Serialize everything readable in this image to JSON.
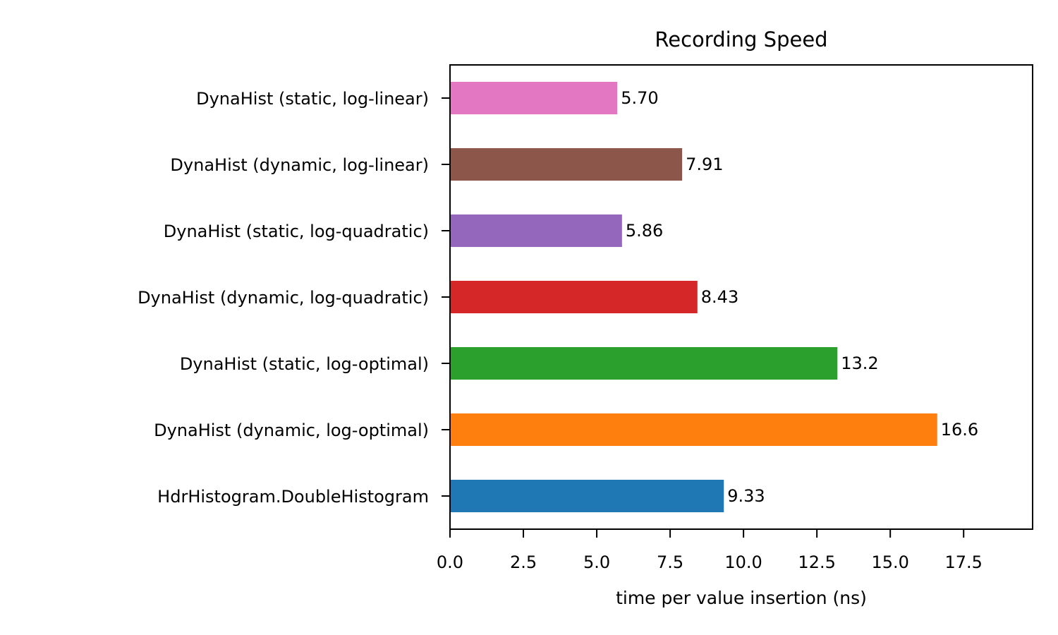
{
  "chart_data": {
    "type": "bar",
    "orientation": "horizontal",
    "title": "Recording Speed",
    "xlabel": "time per value insertion (ns)",
    "ylabel": "",
    "xlim": [
      0,
      19.85
    ],
    "xticks": [
      "0.0",
      "2.5",
      "5.0",
      "7.5",
      "10.0",
      "12.5",
      "15.0",
      "17.5"
    ],
    "categories": [
      "DynaHist (static, log-linear)",
      "DynaHist (dynamic, log-linear)",
      "DynaHist (static, log-quadratic)",
      "DynaHist (dynamic, log-quadratic)",
      "DynaHist (static, log-optimal)",
      "DynaHist (dynamic, log-optimal)",
      "HdrHistogram.DoubleHistogram"
    ],
    "values": [
      5.7,
      7.91,
      5.86,
      8.43,
      13.2,
      16.6,
      9.33
    ],
    "value_labels": [
      "5.70",
      "7.91",
      "5.86",
      "8.43",
      "13.2",
      "16.6",
      "9.33"
    ],
    "colors": [
      "#e377c2",
      "#8c564b",
      "#9467bd",
      "#d62728",
      "#2ca02c",
      "#ff7f0e",
      "#1f77b4"
    ],
    "grid": false,
    "legend": "none"
  }
}
